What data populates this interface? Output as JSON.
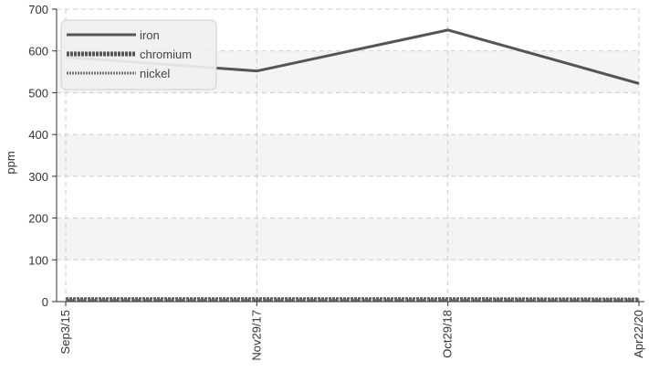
{
  "chart_data": {
    "type": "line",
    "title": "",
    "xlabel": "",
    "ylabel": "ppm",
    "categories": [
      "Sep3/15",
      "Nov29/17",
      "Oct29/18",
      "Apr22/20"
    ],
    "ylim": [
      0,
      700
    ],
    "yticks": [
      0,
      100,
      200,
      300,
      400,
      500,
      600,
      700
    ],
    "grid": true,
    "legend_position": "top-left",
    "series": [
      {
        "name": "iron",
        "values": [
          585,
          552,
          650,
          522
        ],
        "style": "solid",
        "color": "#555555"
      },
      {
        "name": "chromium",
        "values": [
          5,
          5,
          5,
          4
        ],
        "style": "dashed",
        "color": "#555555"
      },
      {
        "name": "nickel",
        "values": [
          3,
          3,
          3,
          3
        ],
        "style": "dotted",
        "color": "#777777"
      }
    ],
    "colors": {
      "band": "#f4f4f4",
      "grid": "#cccccc",
      "axis": "#333333",
      "legend_bg": "#f0f0f0"
    }
  }
}
